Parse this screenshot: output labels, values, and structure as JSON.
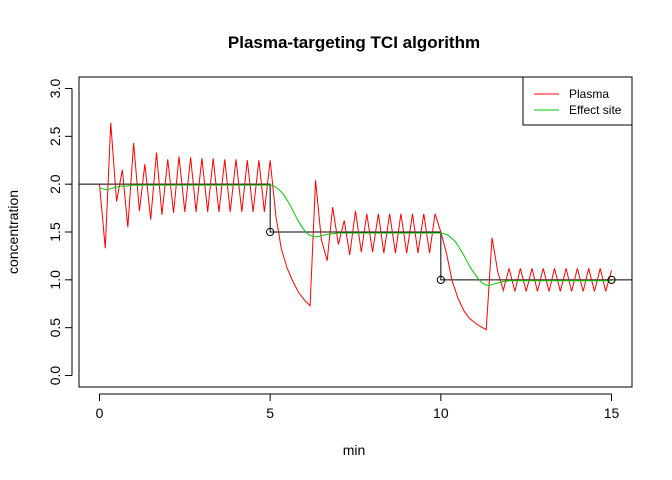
{
  "chart_data": {
    "type": "line",
    "title": "Plasma-targeting TCI algorithm",
    "xlabel": "min",
    "ylabel": "concentration",
    "xlim": [
      -0.6,
      15.6
    ],
    "ylim": [
      -0.12,
      3.12
    ],
    "x_ticks": [
      0,
      5,
      10,
      15
    ],
    "x_tick_labels": [
      "0",
      "5",
      "10",
      "15"
    ],
    "y_ticks": [
      0.0,
      0.5,
      1.0,
      1.5,
      2.0,
      2.5,
      3.0
    ],
    "y_tick_labels": [
      "0.0",
      "0.5",
      "1.0",
      "1.5",
      "2.0",
      "2.5",
      "3.0"
    ],
    "grid": false,
    "legend_position": "top-right",
    "colors": {
      "plasma": "#ff0000",
      "effect_site": "#00cd00",
      "target": "#000000"
    },
    "series": [
      {
        "name": "Plasma",
        "x": [
          0,
          0.17,
          0.33,
          0.5,
          0.67,
          0.83,
          1.0,
          1.17,
          1.33,
          1.5,
          1.67,
          1.83,
          2.0,
          2.17,
          2.33,
          2.5,
          2.67,
          2.83,
          3.0,
          3.17,
          3.33,
          3.5,
          3.67,
          3.83,
          4.0,
          4.17,
          4.33,
          4.5,
          4.67,
          4.83,
          5.0,
          5.17,
          5.33,
          5.5,
          5.67,
          5.83,
          6.0,
          6.17,
          6.33,
          6.5,
          6.67,
          6.83,
          7.0,
          7.17,
          7.33,
          7.5,
          7.67,
          7.83,
          8.0,
          8.17,
          8.33,
          8.5,
          8.67,
          8.83,
          9.0,
          9.17,
          9.33,
          9.5,
          9.67,
          9.83,
          10.0,
          10.17,
          10.33,
          10.5,
          10.67,
          10.83,
          11.0,
          11.17,
          11.33,
          11.5,
          11.67,
          11.83,
          12.0,
          12.17,
          12.33,
          12.5,
          12.67,
          12.83,
          13.0,
          13.17,
          13.33,
          13.5,
          13.67,
          13.83,
          14.0,
          14.17,
          14.33,
          14.5,
          14.67,
          14.83,
          15.0
        ],
        "y": [
          2.0,
          1.33,
          2.64,
          1.82,
          2.15,
          1.55,
          2.43,
          1.72,
          2.21,
          1.63,
          2.33,
          1.68,
          2.26,
          1.7,
          2.29,
          1.71,
          2.28,
          1.71,
          2.27,
          1.71,
          2.27,
          1.71,
          2.26,
          1.71,
          2.26,
          1.71,
          2.25,
          1.71,
          2.25,
          1.71,
          2.25,
          1.66,
          1.32,
          1.12,
          0.98,
          0.87,
          0.79,
          0.73,
          2.04,
          1.42,
          1.2,
          1.76,
          1.37,
          1.62,
          1.26,
          1.72,
          1.29,
          1.69,
          1.29,
          1.69,
          1.28,
          1.69,
          1.28,
          1.69,
          1.28,
          1.69,
          1.28,
          1.69,
          1.28,
          1.69,
          1.5,
          1.27,
          0.99,
          0.81,
          0.68,
          0.6,
          0.55,
          0.51,
          0.48,
          1.44,
          1.08,
          0.89,
          1.12,
          0.88,
          1.12,
          0.88,
          1.12,
          0.88,
          1.12,
          0.88,
          1.12,
          0.88,
          1.12,
          0.88,
          1.12,
          0.88,
          1.12,
          0.88,
          1.12,
          0.88,
          1.1
        ]
      },
      {
        "name": "Effect site",
        "x": [
          0,
          0.1,
          0.2,
          0.3,
          0.4,
          0.6,
          0.8,
          1.0,
          1.5,
          2.0,
          3.0,
          4.0,
          5.0,
          5.1,
          5.2,
          5.3,
          5.4,
          5.5,
          5.6,
          5.7,
          5.8,
          5.9,
          6.0,
          6.1,
          6.2,
          6.3,
          6.4,
          6.5,
          6.6,
          6.8,
          7.0,
          7.5,
          8.0,
          9.0,
          10.0,
          10.1,
          10.2,
          10.3,
          10.4,
          10.5,
          10.6,
          10.7,
          10.8,
          10.9,
          11.0,
          11.1,
          11.2,
          11.3,
          11.4,
          11.5,
          11.6,
          11.7,
          11.8,
          12.0,
          12.5,
          13.0,
          14.0,
          15.0
        ],
        "y": [
          1.96,
          1.95,
          1.94,
          1.95,
          1.96,
          1.98,
          1.98,
          1.99,
          1.99,
          1.99,
          1.99,
          1.99,
          1.99,
          1.98,
          1.96,
          1.93,
          1.89,
          1.83,
          1.77,
          1.7,
          1.63,
          1.57,
          1.52,
          1.48,
          1.46,
          1.45,
          1.45,
          1.46,
          1.47,
          1.48,
          1.49,
          1.49,
          1.49,
          1.49,
          1.49,
          1.48,
          1.47,
          1.44,
          1.41,
          1.36,
          1.3,
          1.24,
          1.17,
          1.11,
          1.06,
          1.01,
          0.97,
          0.95,
          0.94,
          0.95,
          0.96,
          0.97,
          0.98,
          0.99,
          0.99,
          0.99,
          0.99,
          0.99
        ]
      }
    ],
    "target_steps": {
      "x": [
        -0.6,
        5,
        5,
        10,
        10,
        15.6
      ],
      "y": [
        2.0,
        2.0,
        1.5,
        1.5,
        1.0,
        1.0
      ]
    },
    "target_points": [
      {
        "x": 5,
        "y": 1.5
      },
      {
        "x": 10,
        "y": 1.0
      },
      {
        "x": 15,
        "y": 1.0
      }
    ]
  }
}
